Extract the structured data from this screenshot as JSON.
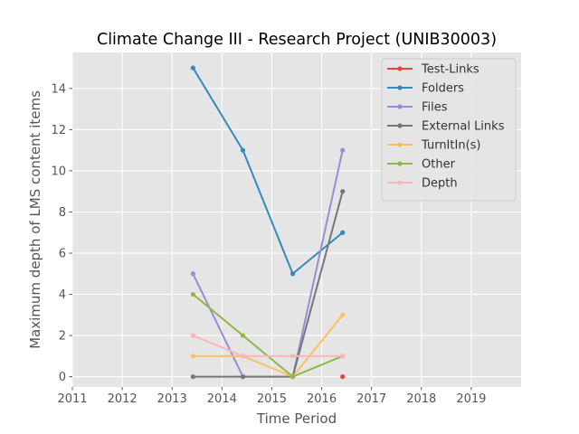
{
  "chart_data": {
    "type": "line",
    "title": "Climate Change III - Research Project (UNIB30003)",
    "xlabel": "Time Period",
    "ylabel": "Maximum depth of LMS content items",
    "xlim": [
      2011,
      2020
    ],
    "ylim": [
      -0.5,
      15.75
    ],
    "x_ticks": [
      2011,
      2012,
      2013,
      2014,
      2015,
      2016,
      2017,
      2018,
      2019
    ],
    "y_ticks": [
      0,
      2,
      4,
      6,
      8,
      10,
      12,
      14
    ],
    "grid": true,
    "legend_position": "top-right",
    "series": [
      {
        "name": "Test-Links",
        "color": "#e24a33",
        "x": [
          2016.42
        ],
        "y": [
          0
        ]
      },
      {
        "name": "Folders",
        "color": "#348abd",
        "x": [
          2013.42,
          2014.42,
          2015.42,
          2016.42
        ],
        "y": [
          15,
          11,
          5,
          7
        ]
      },
      {
        "name": "Files",
        "color": "#988ed5",
        "x": [
          2013.42,
          2014.42,
          2015.42,
          2016.42
        ],
        "y": [
          5,
          0,
          0,
          11
        ]
      },
      {
        "name": "External Links",
        "color": "#777777",
        "x": [
          2013.42,
          2014.42,
          2015.42,
          2016.42
        ],
        "y": [
          0,
          0,
          0,
          9
        ]
      },
      {
        "name": "TurnItIn(s)",
        "color": "#fbc15e",
        "x": [
          2013.42,
          2014.42,
          2015.42,
          2016.42
        ],
        "y": [
          1,
          1,
          0,
          3
        ]
      },
      {
        "name": "Other",
        "color": "#8eba42",
        "x": [
          2013.42,
          2014.42,
          2015.42,
          2016.42
        ],
        "y": [
          4,
          2,
          0,
          1
        ]
      },
      {
        "name": "Depth",
        "color": "#ffb5b8",
        "x": [
          2013.42,
          2014.42,
          2015.42,
          2016.42
        ],
        "y": [
          2,
          1,
          1,
          1
        ]
      }
    ]
  }
}
